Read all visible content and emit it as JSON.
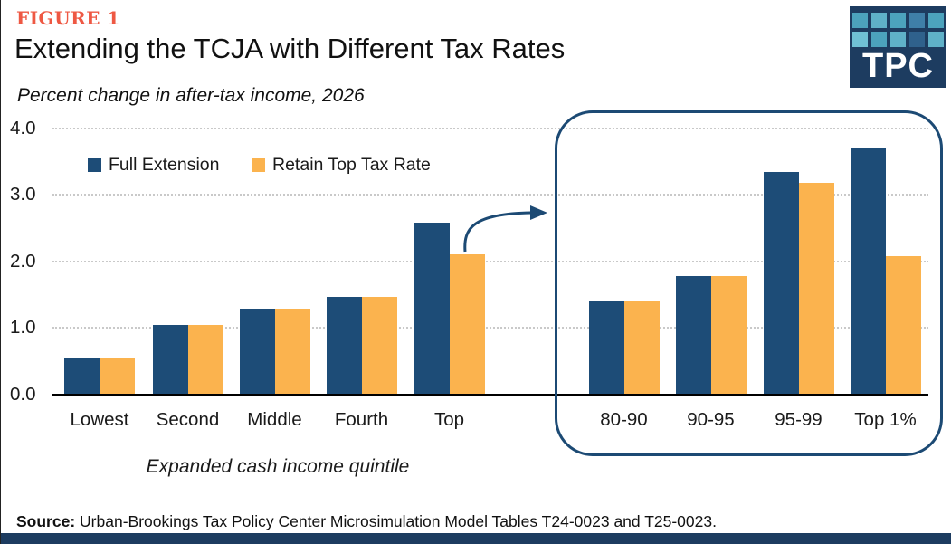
{
  "header": {
    "figure_label": "FIGURE 1",
    "title": "Extending the TCJA with Different Tax Rates",
    "subtitle": "Percent change in after-tax income, 2026"
  },
  "logo": {
    "text": "TPC",
    "bg_color": "#1d3c60",
    "square_colors": [
      [
        "#4ca3bd",
        "#5fb1c8",
        "#4ca3bd",
        "#3f7fa8",
        "#4ca3bd"
      ],
      [
        "#6fc0d4",
        "#4ca3bd",
        "#5fb1c8",
        "#2f618c",
        "#5fb1c8"
      ]
    ]
  },
  "legend": [
    {
      "label": "Full Extension",
      "color": "#1d4c77"
    },
    {
      "label": "Retain Top Tax Rate",
      "color": "#fbb34e"
    }
  ],
  "chart_data": {
    "type": "bar",
    "title": "Extending the TCJA with Different Tax Rates",
    "subtitle": "Percent change in after-tax income, 2026",
    "ylabel": "Percent change in after-tax income",
    "ylim": [
      0,
      4.0
    ],
    "yticks": [
      "4.0",
      "3.0",
      "2.0",
      "1.0",
      "0.0"
    ],
    "grid": "horizontal-dotted",
    "legend_position": "top-left",
    "groups": [
      {
        "name": "income-quintiles",
        "xlabel": "Expanded cash income quintile",
        "categories": [
          "Lowest",
          "Second",
          "Middle",
          "Fourth",
          "Top"
        ],
        "series": [
          {
            "name": "Full Extension",
            "color": "#1d4c77",
            "values": [
              0.55,
              1.03,
              1.28,
              1.45,
              2.57
            ]
          },
          {
            "name": "Retain Top Tax Rate",
            "color": "#fbb34e",
            "values": [
              0.55,
              1.03,
              1.28,
              1.45,
              2.09
            ]
          }
        ]
      },
      {
        "name": "top-quintile-detail",
        "xlabel": "",
        "categories": [
          "80-90",
          "90-95",
          "95-99",
          "Top 1%"
        ],
        "series": [
          {
            "name": "Full Extension",
            "color": "#1d4c77",
            "values": [
              1.38,
              1.76,
              3.33,
              3.68
            ]
          },
          {
            "name": "Retain Top Tax Rate",
            "color": "#fbb34e",
            "values": [
              1.38,
              1.76,
              3.16,
              2.07
            ]
          }
        ]
      }
    ],
    "annotations": [
      "curved arrow from Top quintile bars to detail panel of 80-90 / 90-95 / 95-99 / Top 1% breakdown"
    ]
  },
  "axis": {
    "x_axis_title": "Expanded cash income quintile"
  },
  "source": {
    "label": "Source:",
    "text": "Urban-Brookings Tax Policy Center Microsimulation Model Tables T24-0023 and T25-0023."
  },
  "colors": {
    "figure_label": "#ee5843",
    "bar_blue": "#1d4c77",
    "bar_orange": "#fbb34e",
    "panel_border": "#1c4a74",
    "navy_band": "#1d3c60",
    "gridline": "#c9c9c9",
    "axis": "#000000"
  }
}
